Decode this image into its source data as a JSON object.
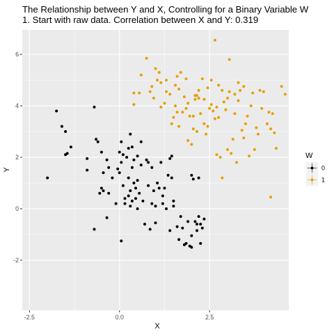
{
  "chart_data": {
    "type": "scatter",
    "title": "The Relationship between Y and X, Controlling for a Binary Variable W",
    "subtitle": "1. Start with raw data. Correlation between X and Y: 0.319",
    "xlabel": "X",
    "ylabel": "Y",
    "xlim": [
      -2.7,
      4.7
    ],
    "ylim": [
      -3.95,
      6.95
    ],
    "x_ticks": [
      -2.5,
      0.0,
      2.5
    ],
    "x_tick_labels": [
      "-2.5",
      "0.0",
      "2.5"
    ],
    "y_ticks": [
      -2,
      0,
      2,
      4,
      6
    ],
    "y_tick_labels": [
      "-2",
      "0",
      "2",
      "4",
      "6"
    ],
    "grid": true,
    "panel_background": "#EBEBEB",
    "grid_color": "#FFFFFF",
    "legend": {
      "title": "W",
      "position": "right",
      "entries": [
        {
          "label": "0",
          "color": "#000000"
        },
        {
          "label": "1",
          "color": "#E69F00"
        }
      ]
    },
    "series": [
      {
        "name": "0",
        "color": "#000000",
        "points": [
          [
            -2.0,
            1.2
          ],
          [
            -1.75,
            3.8
          ],
          [
            -1.6,
            3.2
          ],
          [
            -1.5,
            3.0
          ],
          [
            -1.5,
            2.1
          ],
          [
            -1.45,
            2.15
          ],
          [
            -1.35,
            2.4
          ],
          [
            -0.9,
            1.95
          ],
          [
            -0.7,
            3.95
          ],
          [
            -0.65,
            2.7
          ],
          [
            -0.6,
            2.6
          ],
          [
            -0.5,
            2.2
          ],
          [
            -0.9,
            1.5
          ],
          [
            -0.7,
            -0.8
          ],
          [
            -0.55,
            0.6
          ],
          [
            -0.5,
            0.8
          ],
          [
            -0.45,
            0.7
          ],
          [
            -0.45,
            1.4
          ],
          [
            -0.35,
            1.9
          ],
          [
            -0.3,
            0.6
          ],
          [
            -0.3,
            1.6
          ],
          [
            -0.35,
            -0.35
          ],
          [
            -0.2,
            1.2
          ],
          [
            -0.1,
            0.2
          ],
          [
            -0.05,
            1.55
          ],
          [
            0.0,
            2.2
          ],
          [
            0.0,
            1.4
          ],
          [
            0.05,
            2.6
          ],
          [
            0.05,
            1.8
          ],
          [
            0.1,
            2.1
          ],
          [
            0.05,
            -1.25
          ],
          [
            0.1,
            0.9
          ],
          [
            0.15,
            0.4
          ],
          [
            0.15,
            0.2
          ],
          [
            0.2,
            2.0
          ],
          [
            0.25,
            2.35
          ],
          [
            0.25,
            1.2
          ],
          [
            0.25,
            0.5
          ],
          [
            0.3,
            2.9
          ],
          [
            0.3,
            0.7
          ],
          [
            0.3,
            0.1
          ],
          [
            0.35,
            2.4
          ],
          [
            0.35,
            1.6
          ],
          [
            0.35,
            0.3
          ],
          [
            0.4,
            1.9
          ],
          [
            0.4,
            1.0
          ],
          [
            0.45,
            0.8
          ],
          [
            0.45,
            0.4
          ],
          [
            0.5,
            2.05
          ],
          [
            0.5,
            1.1
          ],
          [
            0.5,
            0.0
          ],
          [
            0.55,
            0.6
          ],
          [
            0.6,
            1.7
          ],
          [
            0.6,
            2.6
          ],
          [
            0.65,
            0.3
          ],
          [
            0.7,
            -0.6
          ],
          [
            0.75,
            1.9
          ],
          [
            0.8,
            0.9
          ],
          [
            0.8,
            1.8
          ],
          [
            0.85,
            -0.8
          ],
          [
            0.9,
            0.2
          ],
          [
            0.9,
            1.6
          ],
          [
            0.95,
            0.7
          ],
          [
            1.0,
            0.1
          ],
          [
            1.0,
            -0.55
          ],
          [
            1.05,
            1.0
          ],
          [
            1.1,
            0.8
          ],
          [
            1.15,
            1.8
          ],
          [
            1.2,
            0.5
          ],
          [
            1.2,
            0.2
          ],
          [
            1.25,
            0.8
          ],
          [
            1.3,
            0.0
          ],
          [
            1.35,
            1.3
          ],
          [
            1.4,
            1.95
          ],
          [
            1.45,
            2.05
          ],
          [
            1.45,
            1.2
          ],
          [
            1.4,
            -0.85
          ],
          [
            1.5,
            0.3
          ],
          [
            1.5,
            0.1
          ],
          [
            1.6,
            -0.7
          ],
          [
            1.65,
            -1.2
          ],
          [
            1.7,
            -0.3
          ],
          [
            1.75,
            -0.75
          ],
          [
            1.8,
            -1.4
          ],
          [
            1.85,
            -1.35
          ],
          [
            1.9,
            -0.5
          ],
          [
            1.95,
            -1.45
          ],
          [
            2.0,
            -1.5
          ],
          [
            2.0,
            -1.05
          ],
          [
            2.0,
            1.3
          ],
          [
            2.05,
            1.15
          ],
          [
            2.1,
            -0.5
          ],
          [
            2.15,
            -0.85
          ],
          [
            2.15,
            -0.6
          ],
          [
            2.2,
            -0.3
          ],
          [
            2.2,
            1.2
          ],
          [
            2.25,
            -0.6
          ],
          [
            2.25,
            -1.35
          ],
          [
            2.3,
            -0.75
          ],
          [
            2.35,
            -0.4
          ]
        ]
      },
      {
        "name": "1",
        "color": "#E69F00",
        "points": [
          [
            0.4,
            4.05
          ],
          [
            0.4,
            4.5
          ],
          [
            0.55,
            4.5
          ],
          [
            0.6,
            5.2
          ],
          [
            0.75,
            5.85
          ],
          [
            0.85,
            4.55
          ],
          [
            0.9,
            4.75
          ],
          [
            0.95,
            4.3
          ],
          [
            1.0,
            5.45
          ],
          [
            1.05,
            5.0
          ],
          [
            1.1,
            5.3
          ],
          [
            1.15,
            3.95
          ],
          [
            1.15,
            4.9
          ],
          [
            1.25,
            4.1
          ],
          [
            1.3,
            4.55
          ],
          [
            1.3,
            5.0
          ],
          [
            1.4,
            4.45
          ],
          [
            1.45,
            3.3
          ],
          [
            1.5,
            3.55
          ],
          [
            1.55,
            4.0
          ],
          [
            1.55,
            4.8
          ],
          [
            1.6,
            5.15
          ],
          [
            1.6,
            3.75
          ],
          [
            1.65,
            4.65
          ],
          [
            1.65,
            3.2
          ],
          [
            1.7,
            5.3
          ],
          [
            1.75,
            3.75
          ],
          [
            1.8,
            4.35
          ],
          [
            1.85,
            3.9
          ],
          [
            1.85,
            5.05
          ],
          [
            1.9,
            2.65
          ],
          [
            1.9,
            4.1
          ],
          [
            1.95,
            3.6
          ],
          [
            2.0,
            2.5
          ],
          [
            2.05,
            3.1
          ],
          [
            2.05,
            3.6
          ],
          [
            2.1,
            4.4
          ],
          [
            2.1,
            4.25
          ],
          [
            2.15,
            4.4
          ],
          [
            2.15,
            3.0
          ],
          [
            2.2,
            4.3
          ],
          [
            2.2,
            4.6
          ],
          [
            2.25,
            3.7
          ],
          [
            2.3,
            5.05
          ],
          [
            2.35,
            3.3
          ],
          [
            2.35,
            4.25
          ],
          [
            2.4,
            2.9
          ],
          [
            2.45,
            3.2
          ],
          [
            2.45,
            4.7
          ],
          [
            2.5,
            3.9
          ],
          [
            2.55,
            5.0
          ],
          [
            2.55,
            4.05
          ],
          [
            2.6,
            3.8
          ],
          [
            2.65,
            6.55
          ],
          [
            2.65,
            3.5
          ],
          [
            2.7,
            3.95
          ],
          [
            2.7,
            2.1
          ],
          [
            2.75,
            4.8
          ],
          [
            2.75,
            3.55
          ],
          [
            2.8,
            2.0
          ],
          [
            2.85,
            4.6
          ],
          [
            2.85,
            1.2
          ],
          [
            2.9,
            4.15
          ],
          [
            2.95,
            3.85
          ],
          [
            3.0,
            4.3
          ],
          [
            3.0,
            2.3
          ],
          [
            3.05,
            5.8
          ],
          [
            3.05,
            4.55
          ],
          [
            3.1,
            2.15
          ],
          [
            3.15,
            2.7
          ],
          [
            3.2,
            4.45
          ],
          [
            3.2,
            3.7
          ],
          [
            3.25,
            1.8
          ],
          [
            3.3,
            4.2
          ],
          [
            3.3,
            4.9
          ],
          [
            3.35,
            4.6
          ],
          [
            3.4,
            3.05
          ],
          [
            3.45,
            4.75
          ],
          [
            3.45,
            2.75
          ],
          [
            3.5,
            3.3
          ],
          [
            3.55,
            3.6
          ],
          [
            3.6,
            2.05
          ],
          [
            3.65,
            4.0
          ],
          [
            3.7,
            4.5
          ],
          [
            3.75,
            2.3
          ],
          [
            3.8,
            3.15
          ],
          [
            3.85,
            2.9
          ],
          [
            3.9,
            4.6
          ],
          [
            3.95,
            3.9
          ],
          [
            4.0,
            4.55
          ],
          [
            4.1,
            3.3
          ],
          [
            4.15,
            3.75
          ],
          [
            4.2,
            0.45
          ],
          [
            4.2,
            3.1
          ],
          [
            4.25,
            3.7
          ],
          [
            4.3,
            2.95
          ],
          [
            4.35,
            2.35
          ],
          [
            4.5,
            4.75
          ],
          [
            4.6,
            4.45
          ]
        ]
      }
    ]
  }
}
